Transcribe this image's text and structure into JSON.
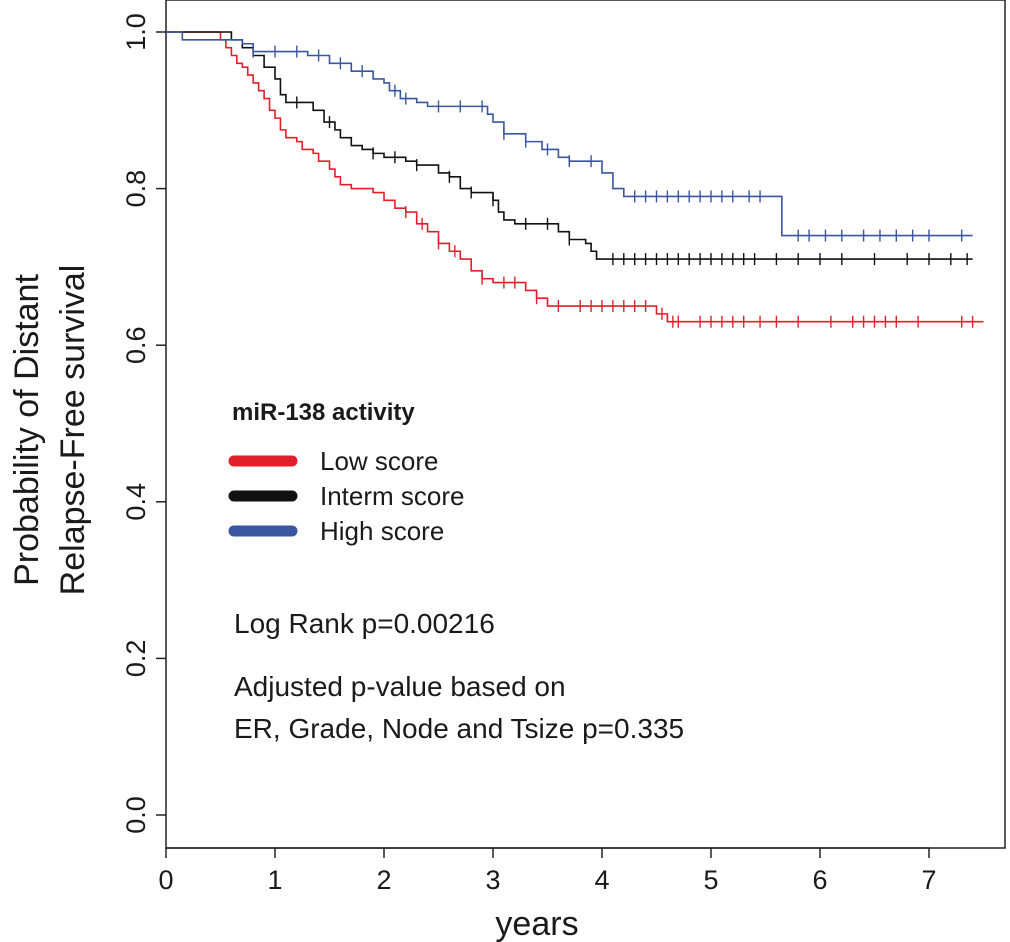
{
  "chart_data": {
    "type": "line",
    "step": true,
    "xlabel": "years",
    "ylabel_lines": [
      "Probability of Distant",
      "Relapse-Free survival"
    ],
    "xlim": [
      0,
      7.6
    ],
    "ylim": [
      0,
      1.0
    ],
    "x_ticks": [
      "0",
      "1",
      "2",
      "3",
      "4",
      "5",
      "6",
      "7"
    ],
    "y_ticks": [
      "0.0",
      "0.2",
      "0.4",
      "0.6",
      "0.8",
      "1.0"
    ],
    "legend_title": "miR-138 activity",
    "legend_position": "center-left",
    "grid": false,
    "series": [
      {
        "name": "Low score",
        "color": "#e0202a",
        "points": [
          [
            0,
            1.0
          ],
          [
            0.5,
            0.99
          ],
          [
            0.55,
            0.98
          ],
          [
            0.6,
            0.97
          ],
          [
            0.65,
            0.96
          ],
          [
            0.7,
            0.955
          ],
          [
            0.75,
            0.945
          ],
          [
            0.8,
            0.935
          ],
          [
            0.85,
            0.925
          ],
          [
            0.9,
            0.915
          ],
          [
            0.95,
            0.9
          ],
          [
            1.0,
            0.89
          ],
          [
            1.05,
            0.875
          ],
          [
            1.1,
            0.865
          ],
          [
            1.2,
            0.86
          ],
          [
            1.25,
            0.85
          ],
          [
            1.35,
            0.845
          ],
          [
            1.4,
            0.835
          ],
          [
            1.5,
            0.825
          ],
          [
            1.55,
            0.815
          ],
          [
            1.6,
            0.805
          ],
          [
            1.7,
            0.8
          ],
          [
            1.9,
            0.795
          ],
          [
            2.0,
            0.785
          ],
          [
            2.1,
            0.775
          ],
          [
            2.2,
            0.77
          ],
          [
            2.3,
            0.755
          ],
          [
            2.4,
            0.745
          ],
          [
            2.5,
            0.73
          ],
          [
            2.6,
            0.72
          ],
          [
            2.7,
            0.71
          ],
          [
            2.8,
            0.695
          ],
          [
            2.9,
            0.685
          ],
          [
            3.0,
            0.68
          ],
          [
            3.3,
            0.67
          ],
          [
            3.4,
            0.66
          ],
          [
            3.5,
            0.65
          ],
          [
            4.5,
            0.64
          ],
          [
            4.6,
            0.63
          ],
          [
            7.5,
            0.63
          ]
        ],
        "censor_x": [
          2.2,
          2.35,
          2.5,
          2.65,
          2.9,
          3.1,
          3.2,
          3.4,
          3.6,
          3.8,
          3.9,
          4.0,
          4.1,
          4.2,
          4.3,
          4.4,
          4.55,
          4.65,
          4.7,
          4.9,
          5.0,
          5.1,
          5.2,
          5.3,
          5.45,
          5.6,
          5.8,
          6.1,
          6.3,
          6.4,
          6.5,
          6.6,
          6.7,
          6.9,
          7.3,
          7.4
        ]
      },
      {
        "name": "Interm score",
        "color": "#111111",
        "points": [
          [
            0,
            1.0
          ],
          [
            0.6,
            0.99
          ],
          [
            0.7,
            0.98
          ],
          [
            0.8,
            0.97
          ],
          [
            0.9,
            0.955
          ],
          [
            1.0,
            0.94
          ],
          [
            1.05,
            0.92
          ],
          [
            1.1,
            0.91
          ],
          [
            1.35,
            0.9
          ],
          [
            1.45,
            0.885
          ],
          [
            1.55,
            0.875
          ],
          [
            1.6,
            0.865
          ],
          [
            1.7,
            0.855
          ],
          [
            1.8,
            0.85
          ],
          [
            1.9,
            0.845
          ],
          [
            2.0,
            0.84
          ],
          [
            2.2,
            0.835
          ],
          [
            2.3,
            0.83
          ],
          [
            2.5,
            0.82
          ],
          [
            2.6,
            0.815
          ],
          [
            2.7,
            0.8
          ],
          [
            2.8,
            0.795
          ],
          [
            3.0,
            0.785
          ],
          [
            3.05,
            0.77
          ],
          [
            3.1,
            0.76
          ],
          [
            3.2,
            0.755
          ],
          [
            3.6,
            0.745
          ],
          [
            3.7,
            0.735
          ],
          [
            3.85,
            0.73
          ],
          [
            3.9,
            0.72
          ],
          [
            3.95,
            0.71
          ],
          [
            7.4,
            0.71
          ]
        ],
        "censor_x": [
          1.2,
          1.5,
          1.9,
          2.1,
          2.3,
          2.6,
          2.8,
          3.0,
          3.3,
          3.5,
          3.7,
          4.1,
          4.2,
          4.3,
          4.4,
          4.5,
          4.6,
          4.7,
          4.8,
          4.9,
          5.0,
          5.1,
          5.2,
          5.3,
          5.4,
          5.6,
          5.8,
          6.0,
          6.2,
          6.5,
          6.8,
          7.0,
          7.2,
          7.35
        ]
      },
      {
        "name": "High score",
        "color": "#3a56a0",
        "points": [
          [
            0,
            1.0
          ],
          [
            0.15,
            0.99
          ],
          [
            0.7,
            0.985
          ],
          [
            0.8,
            0.975
          ],
          [
            1.3,
            0.97
          ],
          [
            1.5,
            0.96
          ],
          [
            1.7,
            0.95
          ],
          [
            1.9,
            0.94
          ],
          [
            2.0,
            0.935
          ],
          [
            2.05,
            0.925
          ],
          [
            2.15,
            0.915
          ],
          [
            2.3,
            0.91
          ],
          [
            2.4,
            0.905
          ],
          [
            2.95,
            0.895
          ],
          [
            3.0,
            0.885
          ],
          [
            3.1,
            0.87
          ],
          [
            3.3,
            0.86
          ],
          [
            3.45,
            0.85
          ],
          [
            3.6,
            0.84
          ],
          [
            3.7,
            0.835
          ],
          [
            4.0,
            0.82
          ],
          [
            4.1,
            0.8
          ],
          [
            4.2,
            0.79
          ],
          [
            5.6,
            0.79
          ],
          [
            5.65,
            0.74
          ],
          [
            7.4,
            0.74
          ]
        ],
        "censor_x": [
          0.8,
          1.0,
          1.2,
          1.4,
          1.6,
          1.8,
          2.1,
          2.2,
          2.5,
          2.7,
          2.9,
          3.1,
          3.3,
          3.5,
          3.7,
          3.9,
          4.3,
          4.4,
          4.5,
          4.6,
          4.7,
          4.8,
          4.9,
          5.0,
          5.1,
          5.2,
          5.35,
          5.45,
          5.8,
          5.9,
          6.05,
          6.2,
          6.4,
          6.55,
          6.7,
          6.85,
          7.0,
          7.3
        ]
      }
    ],
    "annotations": [
      "Log Rank p=0.00216",
      "Adjusted p-value based on",
      "ER, Grade, Node and Tsize p=0.335"
    ]
  }
}
